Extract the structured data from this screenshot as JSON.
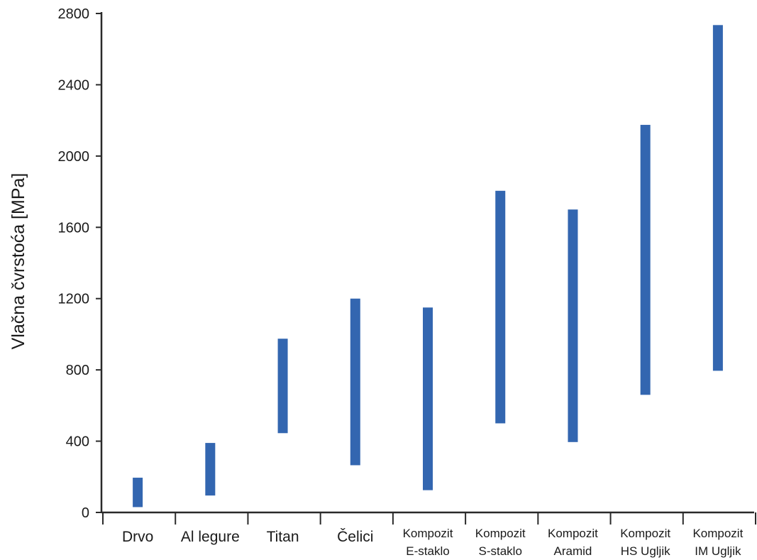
{
  "chart_data": {
    "type": "range-bar",
    "ylabel": "Vlačna čvrstoća [MPa]",
    "xlabel": "",
    "ylim": [
      0,
      2800
    ],
    "yticks": [
      0,
      400,
      800,
      1200,
      1600,
      2000,
      2400,
      2800
    ],
    "grid": false,
    "bar_color": "#3366b0",
    "categories": [
      [
        "Drvo"
      ],
      [
        "Al legure"
      ],
      [
        "Titan"
      ],
      [
        "Čelici"
      ],
      [
        "Kompozit",
        "E-staklo"
      ],
      [
        "Kompozit",
        "S-staklo"
      ],
      [
        "Kompozit",
        "Aramid"
      ],
      [
        "Kompozit",
        "HS Ugljik"
      ],
      [
        "Kompozit",
        "IM Ugljik"
      ]
    ],
    "ranges": [
      [
        30,
        195
      ],
      [
        95,
        390
      ],
      [
        445,
        975
      ],
      [
        265,
        1200
      ],
      [
        125,
        1150
      ],
      [
        500,
        1805
      ],
      [
        395,
        1700
      ],
      [
        660,
        2175
      ],
      [
        795,
        2735
      ]
    ]
  }
}
